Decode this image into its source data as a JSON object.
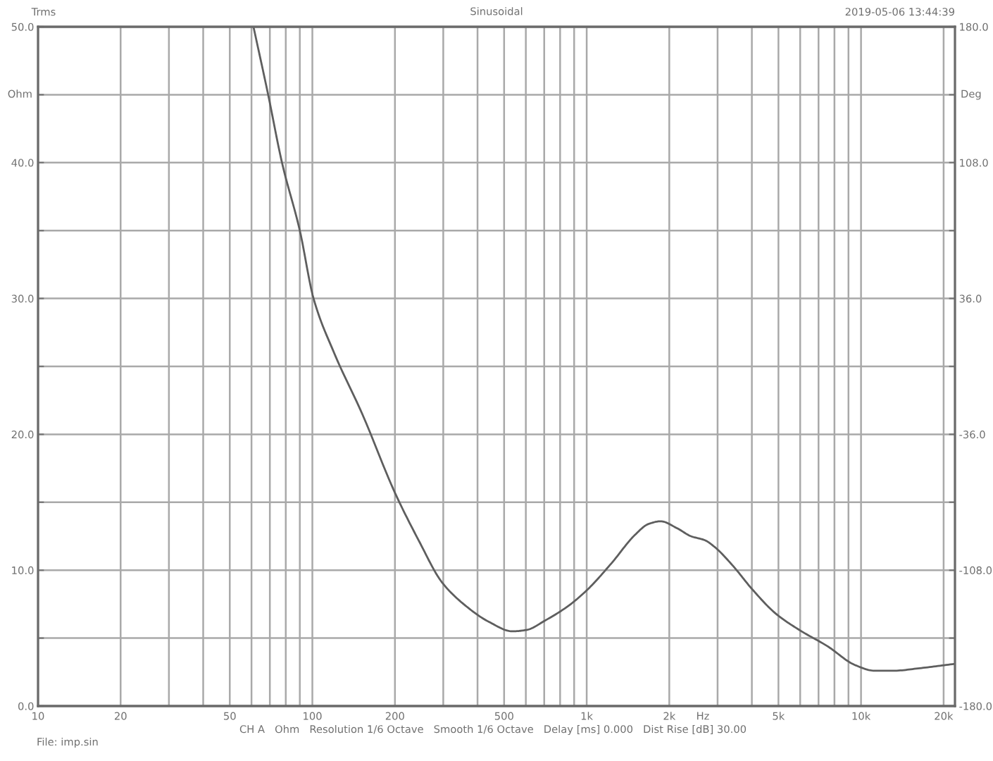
{
  "chart_data": {
    "type": "line",
    "title": "Sinusoidal",
    "xlabel": "Hz",
    "ylabel": "Ohm",
    "y2label": "Deg",
    "annotations": [
      "Trms",
      "2019-05-06 13:44:39",
      "CH A   Ohm   Resolution 1/6 Octave   Smooth 1/6 Octave   Delay [ms] 0.000   Dist Rise [dB] 30.00",
      "File: imp.sin"
    ],
    "x": [
      61,
      69,
      77.5,
      90,
      101,
      120,
      152,
      200,
      244,
      297,
      361,
      440,
      536,
      603,
      706,
      861,
      1010,
      1230,
      1500,
      1680,
      1860,
      2130,
      2400,
      2700,
      2930,
      3420,
      4010,
      4890,
      5960,
      7550,
      9550,
      11200,
      13100,
      16600,
      21900
    ],
    "series": [
      {
        "color": "#5e5e5e",
        "values": [
          50,
          45,
          40,
          35,
          30,
          26.0,
          21.5,
          15.7,
          12.2,
          9.1,
          7.4,
          6.2,
          5.5,
          5.6,
          6.3,
          7.4,
          8.6,
          10.5,
          12.6,
          13.4,
          13.6,
          13.1,
          12.5,
          12.2,
          11.7,
          10.3,
          8.6,
          6.8,
          5.6,
          4.4,
          3.0,
          2.6,
          2.6,
          2.8,
          3.1
        ]
      }
    ],
    "log": "x",
    "xlim": [
      10,
      22000
    ],
    "xticks": [
      10,
      20,
      {
        "value": 30,
        "label": null
      },
      {
        "value": 40,
        "label": null
      },
      50,
      {
        "value": 60,
        "label": null
      },
      {
        "value": 70,
        "label": null
      },
      {
        "value": 80,
        "label": null
      },
      {
        "value": 90,
        "label": null
      },
      100,
      200,
      {
        "value": 300,
        "label": null
      },
      {
        "value": 400,
        "label": null
      },
      500,
      {
        "value": 600,
        "label": null
      },
      {
        "value": 700,
        "label": null
      },
      {
        "value": 800,
        "label": null
      },
      {
        "value": 900,
        "label": null
      },
      {
        "value": 1000,
        "label": "1k"
      },
      {
        "value": 2000,
        "label": "2k"
      },
      {
        "value": 3000,
        "label": null
      },
      {
        "value": 4000,
        "label": null
      },
      {
        "value": 5000,
        "label": "5k"
      },
      {
        "value": 6000,
        "label": null
      },
      {
        "value": 7000,
        "label": null
      },
      {
        "value": 8000,
        "label": null
      },
      {
        "value": 9000,
        "label": null
      },
      {
        "value": 10000,
        "label": "10k"
      },
      {
        "value": 20000,
        "label": "20k"
      }
    ],
    "ylim": [
      0,
      50
    ],
    "yticks": [
      {
        "value": 0,
        "label": "0.0"
      },
      {
        "value": 5,
        "label": null
      },
      {
        "value": 10,
        "label": "10.0"
      },
      {
        "value": 15,
        "label": null
      },
      {
        "value": 20,
        "label": "20.0"
      },
      {
        "value": 25,
        "label": null
      },
      {
        "value": 30,
        "label": "30.0"
      },
      {
        "value": 35,
        "label": null
      },
      {
        "value": 40,
        "label": "40.0"
      },
      {
        "value": 45,
        "label": null
      },
      {
        "value": 50,
        "label": "50.0"
      }
    ],
    "y2lim": [
      -180,
      180
    ],
    "y2ticks": [
      {
        "value": -180,
        "label": "-180.0"
      },
      {
        "value": -144,
        "label": null
      },
      {
        "value": -108,
        "label": "-108.0"
      },
      {
        "value": -72,
        "label": null
      },
      {
        "value": -36,
        "label": "-36.0"
      },
      {
        "value": 0,
        "label": null
      },
      {
        "value": 36,
        "label": "36.0"
      },
      {
        "value": 72,
        "label": null
      },
      {
        "value": 108,
        "label": "108.0"
      },
      {
        "value": 144,
        "label": null
      },
      {
        "value": 180,
        "label": "180.0"
      }
    ],
    "grid": true
  }
}
